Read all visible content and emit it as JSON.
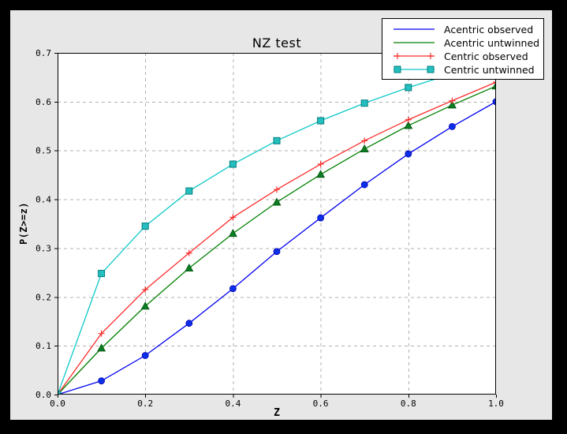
{
  "figure": {
    "outer_background": "#000000",
    "background": "#e7e7e7",
    "plot_background": "#ffffff",
    "axis_color": "#000000"
  },
  "chart_data": {
    "type": "line",
    "title": "NZ test",
    "xlabel": "Z",
    "ylabel": "P(Z>=z)",
    "xlim": [
      0.0,
      1.0
    ],
    "ylim": [
      0.0,
      0.7
    ],
    "xticks": [
      0.0,
      0.2,
      0.4,
      0.6,
      0.8,
      1.0
    ],
    "xtick_labels": [
      "0.0",
      "0.2",
      "0.4",
      "0.6",
      "0.8",
      "1.0"
    ],
    "yticks": [
      0.0,
      0.1,
      0.2,
      0.3,
      0.4,
      0.5,
      0.6,
      0.7
    ],
    "ytick_labels": [
      "0.0",
      "0.1",
      "0.2",
      "0.3",
      "0.4",
      "0.5",
      "0.6",
      "0.7"
    ],
    "grid": true,
    "grid_color": "#b0b0b0",
    "legend_position": "upper right",
    "x": [
      0.0,
      0.1,
      0.2,
      0.3,
      0.4,
      0.5,
      0.6,
      0.7,
      0.8,
      0.9,
      1.0
    ],
    "series": [
      {
        "name": "Acentric observed",
        "color": "#0000f0",
        "marker": "circle",
        "marker_fill": "#0d2ee8",
        "marker_edge": "#0000b4",
        "legend_markers": false,
        "values": [
          0.0,
          0.028,
          0.08,
          0.146,
          0.217,
          0.293,
          0.362,
          0.43,
          0.493,
          0.549,
          0.6
        ]
      },
      {
        "name": "Acentric untwinned",
        "color": "#008000",
        "marker": "triangle",
        "marker_fill": "#0b7d24",
        "marker_edge": "#00500d",
        "legend_markers": false,
        "values": [
          0.0,
          0.095,
          0.181,
          0.259,
          0.33,
          0.394,
          0.451,
          0.503,
          0.551,
          0.593,
          0.632
        ]
      },
      {
        "name": "Centric observed",
        "color": "#fb2e2e",
        "marker": "plus",
        "marker_fill": "#fb2e2e",
        "marker_edge": "#fb2e2e",
        "legend_markers": true,
        "values": [
          0.0,
          0.125,
          0.215,
          0.29,
          0.363,
          0.42,
          0.472,
          0.52,
          0.563,
          0.602,
          0.64
        ]
      },
      {
        "name": "Centric untwinned",
        "color": "#0cc8c8",
        "marker": "square",
        "marker_fill": "#25bfc0",
        "marker_edge": "#007d7d",
        "legend_markers": true,
        "values": [
          0.0,
          0.248,
          0.345,
          0.417,
          0.472,
          0.52,
          0.561,
          0.597,
          0.629,
          0.657,
          0.683
        ]
      }
    ]
  }
}
